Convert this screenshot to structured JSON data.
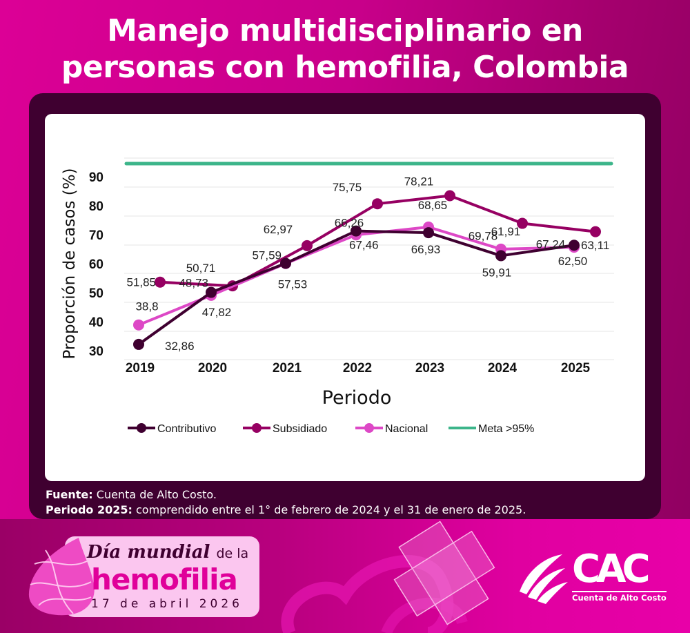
{
  "title": {
    "line1": "Manejo multidisciplinario en",
    "line2": "personas con hemofilia, Colombia"
  },
  "footer": {
    "source_label": "Fuente:",
    "source_text": "Cuenta de Alto Costo.",
    "period_label": "Periodo 2025:",
    "period_text": "comprendido entre el 1° de febrero de 2024 y el 31 de enero de 2025."
  },
  "badge": {
    "line1_main": "Día mundial",
    "line1_small": "de la",
    "line2": "hemofilia",
    "line3": "17 de abril 2026"
  },
  "logo": {
    "name": "CAC",
    "subtitle": "Cuenta de Alto Costo"
  },
  "colors": {
    "contributivo": "#3f0030",
    "subsidiado": "#960062",
    "nacional": "#dd48c6",
    "meta": "#3cb58a"
  },
  "chart_data": {
    "type": "line",
    "title": "Manejo multidisciplinario en personas con hemofilia, Colombia",
    "xlabel": "Periodo",
    "ylabel": "Proporción de casos (%)",
    "categories": [
      "2019",
      "2020",
      "2021",
      "2022",
      "2023",
      "2024",
      "2025"
    ],
    "yticks": [
      "30",
      "40",
      "50",
      "60",
      "70",
      "80",
      "90"
    ],
    "ylim": [
      30,
      95
    ],
    "grid": true,
    "legend_position": "bottom",
    "series": [
      {
        "name": "Contributivo",
        "values": [
          32.86,
          48.73,
          57.59,
          67.46,
          66.93,
          59.91,
          63.11
        ],
        "labels": [
          "32,86",
          "48,73",
          "57,59",
          "67,46",
          "66,93",
          "59,91",
          "63,11"
        ]
      },
      {
        "name": "Subsidiado",
        "values": [
          51.85,
          50.71,
          62.97,
          75.75,
          78.21,
          69.78,
          67.24
        ],
        "labels": [
          "51,85",
          "50,71",
          "62,97",
          "75,75",
          "78,21",
          "69,78",
          "67,24"
        ]
      },
      {
        "name": "Nacional",
        "values": [
          38.8,
          47.82,
          57.53,
          66.26,
          68.65,
          61.91,
          62.5
        ],
        "labels": [
          "38,8",
          "47,82",
          "57,53",
          "66,26",
          "68,65",
          "61,91",
          "62,50"
        ]
      },
      {
        "name": "Meta >95%",
        "values": [
          95,
          95,
          95,
          95,
          95,
          95,
          95
        ]
      }
    ]
  }
}
